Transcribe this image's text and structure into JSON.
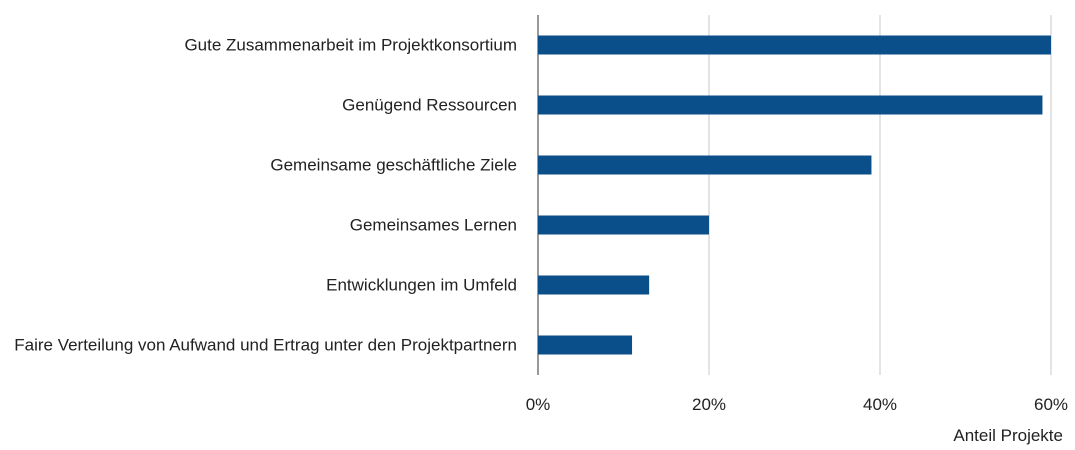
{
  "chart_data": {
    "type": "hbar",
    "categories": [
      "Gute Zusammenarbeit im Projektkonsortium",
      "Genügend Ressourcen",
      "Gemeinsame geschäftliche Ziele",
      "Gemeinsames Lernen",
      "Entwicklungen im Umfeld",
      "Faire Verteilung von Aufwand und Ertrag unter den Projektpartnern"
    ],
    "values": [
      60,
      59,
      39,
      20,
      13,
      11
    ],
    "color": "#0b4f8a",
    "xlim": [
      0,
      60
    ],
    "xticks": [
      {
        "value": 0,
        "label": "0%"
      },
      {
        "value": 20,
        "label": "20%"
      },
      {
        "value": 40,
        "label": "40%"
      },
      {
        "value": 60,
        "label": "60%"
      }
    ],
    "xlabel": "Anteil Projekte",
    "grid": true
  }
}
